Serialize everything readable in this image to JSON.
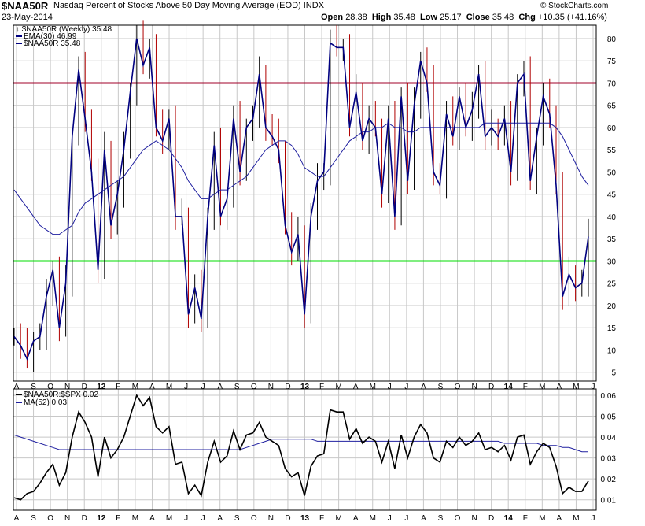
{
  "header": {
    "symbol": "$NAA50R",
    "title": "Nasdaq Percent of Stocks Above 50 Day Moving Average (EOD)",
    "exchange": "INDX",
    "date": "23-May-2014",
    "open_label": "Open",
    "open": "28.38",
    "high_label": "High",
    "high": "35.48",
    "low_label": "Low",
    "low": "25.17",
    "close_label": "Close",
    "close": "35.48",
    "chg_label": "Chg",
    "chg": "+10.35 (+41.16%)",
    "watermark": "© StockCharts.com"
  },
  "colors": {
    "price": "#000080",
    "up_bar": "#000000",
    "down_bar": "#b00000",
    "line70": "#a00028",
    "line30": "#00dd00",
    "line50": "#000000",
    "ratio": "#000000",
    "ma": "#2020a0"
  },
  "chart_data": [
    {
      "type": "line",
      "title": "$NAA50R (Weekly) 35.48",
      "legend": [
        "$NAA50R (Weekly) 35.48",
        "EMA(30) 46.99",
        "$NAA50R 35.48"
      ],
      "ylim": [
        3,
        83
      ],
      "yticks": [
        5,
        10,
        15,
        20,
        25,
        30,
        35,
        40,
        45,
        50,
        55,
        60,
        65,
        70,
        75,
        80
      ],
      "reference_lines": [
        70,
        50,
        30
      ],
      "x_labels": [
        "A",
        "S",
        "O",
        "N",
        "D",
        "12",
        "F",
        "M",
        "A",
        "M",
        "J",
        "J",
        "A",
        "S",
        "O",
        "N",
        "D",
        "13",
        "F",
        "M",
        "A",
        "M",
        "J",
        "J",
        "A",
        "S",
        "O",
        "N",
        "D",
        "14",
        "F",
        "M",
        "A",
        "M",
        "J"
      ],
      "series": [
        {
          "name": "$NAA50R",
          "values": [
            13,
            11,
            8,
            12,
            13,
            22,
            28,
            15,
            25,
            58,
            73,
            62,
            50,
            28,
            55,
            38,
            45,
            55,
            68,
            80,
            74,
            78,
            60,
            57,
            62,
            40,
            40,
            18,
            24,
            17,
            40,
            56,
            40,
            44,
            62,
            50,
            60,
            62,
            72,
            60,
            58,
            55,
            38,
            32,
            36,
            18,
            40,
            48,
            50,
            79,
            78,
            78,
            60,
            68,
            57,
            62,
            60,
            45,
            62,
            40,
            67,
            48,
            65,
            75,
            70,
            50,
            47,
            63,
            58,
            67,
            60,
            64,
            72,
            58,
            60,
            58,
            62,
            50,
            70,
            72,
            48,
            58,
            67,
            63,
            47,
            22,
            27,
            24,
            25,
            35.48
          ]
        },
        {
          "name": "EMA(30)",
          "values": [
            46,
            44,
            42,
            40,
            38,
            37,
            36,
            36,
            37,
            38,
            41,
            43,
            44,
            45,
            46,
            47,
            48,
            49,
            51,
            53,
            55,
            56,
            57,
            56,
            55,
            53,
            51,
            48,
            46,
            44,
            44,
            45,
            46,
            46,
            47,
            48,
            49,
            51,
            53,
            55,
            56,
            57,
            57,
            56,
            54,
            51,
            50,
            49,
            49,
            51,
            53,
            55,
            57,
            58,
            59,
            59,
            60,
            60,
            61,
            60,
            60,
            59,
            59,
            60,
            60,
            60,
            60,
            60,
            60,
            60,
            60,
            60,
            60,
            61,
            61,
            61,
            61,
            61,
            61,
            61,
            61,
            61,
            61,
            61,
            60,
            58,
            55,
            52,
            49,
            47
          ]
        }
      ]
    },
    {
      "type": "line",
      "title": "$NAA50R:$SPX 0.02",
      "legend": [
        "$NAA50R:$SPX 0.02",
        "MA(52) 0.03"
      ],
      "ylim": [
        0.005,
        0.063
      ],
      "yticks": [
        0.01,
        0.02,
        0.03,
        0.04,
        0.05,
        0.06
      ],
      "series": [
        {
          "name": "$NAA50R:$SPX",
          "values": [
            0.011,
            0.01,
            0.013,
            0.014,
            0.018,
            0.023,
            0.027,
            0.017,
            0.023,
            0.04,
            0.052,
            0.047,
            0.04,
            0.021,
            0.04,
            0.03,
            0.034,
            0.04,
            0.05,
            0.06,
            0.055,
            0.059,
            0.045,
            0.042,
            0.045,
            0.027,
            0.028,
            0.013,
            0.017,
            0.012,
            0.028,
            0.038,
            0.028,
            0.031,
            0.043,
            0.034,
            0.041,
            0.042,
            0.047,
            0.04,
            0.038,
            0.036,
            0.025,
            0.021,
            0.023,
            0.012,
            0.026,
            0.031,
            0.032,
            0.053,
            0.052,
            0.052,
            0.039,
            0.044,
            0.037,
            0.04,
            0.038,
            0.028,
            0.038,
            0.025,
            0.041,
            0.03,
            0.04,
            0.046,
            0.042,
            0.03,
            0.028,
            0.038,
            0.035,
            0.04,
            0.036,
            0.038,
            0.042,
            0.034,
            0.035,
            0.033,
            0.036,
            0.029,
            0.04,
            0.041,
            0.027,
            0.033,
            0.037,
            0.035,
            0.026,
            0.013,
            0.016,
            0.014,
            0.014,
            0.019
          ]
        },
        {
          "name": "MA(52)",
          "values": [
            0.041,
            0.04,
            0.039,
            0.038,
            0.037,
            0.036,
            0.035,
            0.034,
            0.034,
            0.034,
            0.034,
            0.034,
            0.034,
            0.034,
            0.034,
            0.034,
            0.034,
            0.034,
            0.034,
            0.034,
            0.034,
            0.034,
            0.034,
            0.034,
            0.034,
            0.034,
            0.034,
            0.034,
            0.034,
            0.034,
            0.034,
            0.034,
            0.034,
            0.034,
            0.034,
            0.034,
            0.035,
            0.036,
            0.037,
            0.038,
            0.039,
            0.039,
            0.039,
            0.039,
            0.039,
            0.039,
            0.039,
            0.038,
            0.038,
            0.038,
            0.038,
            0.038,
            0.038,
            0.038,
            0.038,
            0.038,
            0.038,
            0.038,
            0.038,
            0.038,
            0.038,
            0.038,
            0.038,
            0.038,
            0.038,
            0.038,
            0.038,
            0.038,
            0.038,
            0.038,
            0.038,
            0.038,
            0.038,
            0.038,
            0.038,
            0.038,
            0.037,
            0.037,
            0.037,
            0.037,
            0.037,
            0.037,
            0.036,
            0.036,
            0.036,
            0.035,
            0.035,
            0.034,
            0.033,
            0.033
          ]
        }
      ]
    }
  ]
}
